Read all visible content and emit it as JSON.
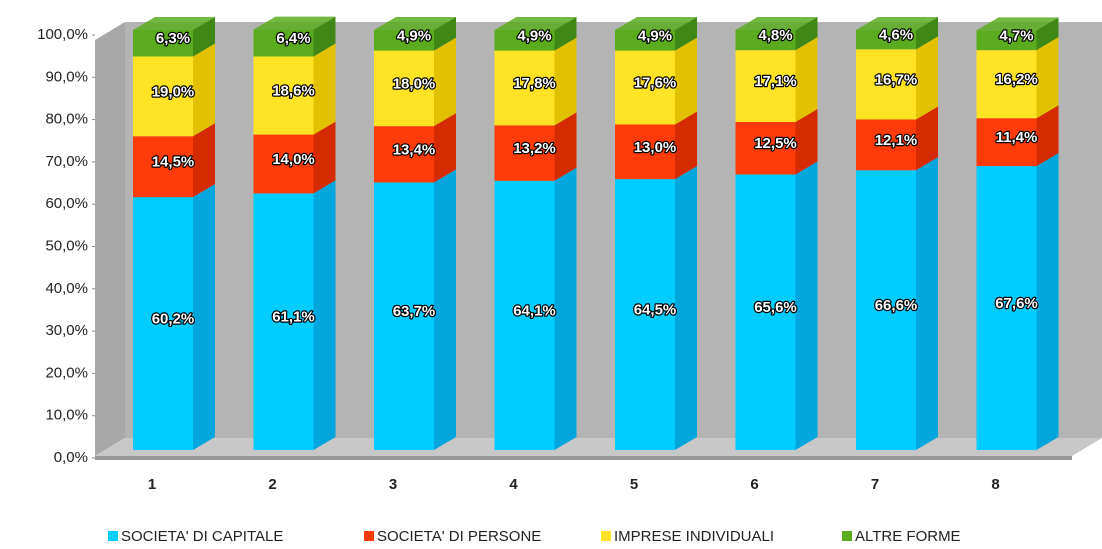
{
  "chart_data": {
    "type": "bar3d_stacked",
    "categories": [
      "1",
      "2",
      "3",
      "4",
      "5",
      "6",
      "7",
      "8"
    ],
    "series": [
      {
        "name": "SOCIETA' DI CAPITALE",
        "color": "#00ccff",
        "side_color": "#00a6dc",
        "values": [
          60.2,
          61.1,
          63.7,
          64.1,
          64.5,
          65.6,
          66.6,
          67.6
        ],
        "value_labels": [
          "60,2%",
          "61,1%",
          "63,7%",
          "64,1%",
          "64,5%",
          "65,6%",
          "66,6%",
          "67,6%"
        ]
      },
      {
        "name": "SOCIETA' DI PERSONE",
        "color": "#ff3b0a",
        "side_color": "#d42c00",
        "values": [
          14.5,
          14.0,
          13.4,
          13.2,
          13.0,
          12.5,
          12.1,
          11.4
        ],
        "value_labels": [
          "14,5%",
          "14,0%",
          "13,4%",
          "13,2%",
          "13,0%",
          "12,5%",
          "12,1%",
          "11,4%"
        ]
      },
      {
        "name": "IMPRESE INDIVIDUALI",
        "color": "#ffe324",
        "side_color": "#e2c200",
        "values": [
          19.0,
          18.6,
          18.0,
          17.8,
          17.6,
          17.1,
          16.7,
          16.2
        ],
        "value_labels": [
          "19,0%",
          "18,6%",
          "18,0%",
          "17,8%",
          "17,6%",
          "17,1%",
          "16,7%",
          "16,2%"
        ]
      },
      {
        "name": "ALTRE FORME",
        "color": "#5aac1e",
        "side_color": "#3f8816",
        "values": [
          6.3,
          6.4,
          4.9,
          4.9,
          4.9,
          4.8,
          4.6,
          4.7
        ],
        "value_labels": [
          "6,3%",
          "6,4%",
          "4,9%",
          "4,9%",
          "4,9%",
          "4,8%",
          "4,6%",
          "4,7%"
        ]
      }
    ],
    "ylim": [
      0,
      100
    ],
    "yticks": [
      {
        "value": 0,
        "label": "0,0%"
      },
      {
        "value": 10,
        "label": "10,0%"
      },
      {
        "value": 20,
        "label": "20,0%"
      },
      {
        "value": 30,
        "label": "30,0%"
      },
      {
        "value": 40,
        "label": "40,0%"
      },
      {
        "value": 50,
        "label": "50,0%"
      },
      {
        "value": 60,
        "label": "60,0%"
      },
      {
        "value": 70,
        "label": "70,0%"
      },
      {
        "value": 80,
        "label": "80,0%"
      },
      {
        "value": 90,
        "label": "90,0%"
      },
      {
        "value": 100,
        "label": "100,0%"
      }
    ],
    "legend": "bottom"
  }
}
